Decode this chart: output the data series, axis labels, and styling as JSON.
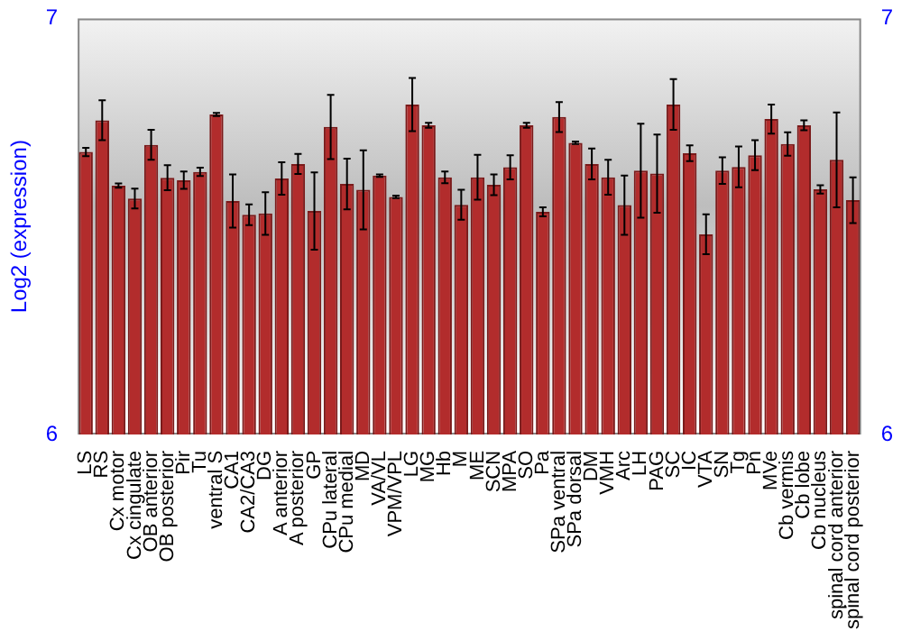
{
  "chart_data": {
    "type": "bar",
    "ylabel": "Log2 (expression)",
    "categories": [
      "LS",
      "RS",
      "Cx motor",
      "Cx cingulate",
      "OB anterior",
      "OB posterior",
      "Pir",
      "Tu",
      "ventral S",
      "CA1",
      "CA2/CA3",
      "DG",
      "A anterior",
      "A posterior",
      "GP",
      "CPu lateral",
      "CPu medial",
      "MD",
      "VA/VL",
      "VPM/VPL",
      "LG",
      "MG",
      "Hb",
      "M",
      "ME",
      "SCN",
      "MPA",
      "SO",
      "Pa",
      "SPa ventral",
      "SPa dorsal",
      "DM",
      "VMH",
      "Arc",
      "LH",
      "PAG",
      "SC",
      "IC",
      "VTA",
      "SN",
      "Tg",
      "Pn",
      "MVe",
      "Cb vermis",
      "Cb lobe",
      "Cb nucleus",
      "spinal cord anterior",
      "spinal cord posterior"
    ],
    "values": [
      6.679,
      6.755,
      6.598,
      6.567,
      6.696,
      6.617,
      6.611,
      6.631,
      6.769,
      6.561,
      6.528,
      6.531,
      6.615,
      6.65,
      6.537,
      6.739,
      6.602,
      6.588,
      6.622,
      6.571,
      6.793,
      6.743,
      6.618,
      6.552,
      6.618,
      6.6,
      6.642,
      6.743,
      6.535,
      6.763,
      6.701,
      6.65,
      6.618,
      6.551,
      6.634,
      6.627,
      6.793,
      6.676,
      6.481,
      6.634,
      6.643,
      6.671,
      6.758,
      6.698,
      6.743,
      6.589,
      6.66,
      6.563
    ],
    "errors": [
      0.01,
      0.048,
      0.005,
      0.024,
      0.036,
      0.03,
      0.021,
      0.01,
      0.004,
      0.064,
      0.025,
      0.051,
      0.039,
      0.024,
      0.093,
      0.077,
      0.061,
      0.095,
      0.003,
      0.003,
      0.064,
      0.006,
      0.014,
      0.036,
      0.054,
      0.025,
      0.029,
      0.006,
      0.011,
      0.036,
      0.003,
      0.037,
      0.042,
      0.071,
      0.113,
      0.094,
      0.061,
      0.019,
      0.048,
      0.032,
      0.049,
      0.036,
      0.035,
      0.028,
      0.012,
      0.01,
      0.114,
      0.055
    ],
    "color": "#b22c2c",
    "ylim": [
      6,
      7
    ],
    "yticks": [
      6,
      7
    ],
    "y2lim": [
      6,
      7
    ],
    "y2ticks": [
      6,
      7
    ],
    "grid": false,
    "legend": false
  }
}
